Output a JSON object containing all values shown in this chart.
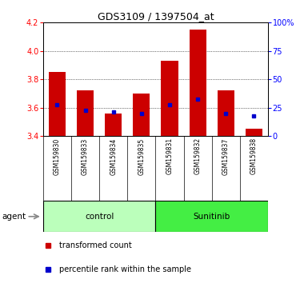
{
  "title": "GDS3109 / 1397504_at",
  "samples": [
    "GSM159830",
    "GSM159833",
    "GSM159834",
    "GSM159835",
    "GSM159831",
    "GSM159832",
    "GSM159837",
    "GSM159838"
  ],
  "groups": [
    "control",
    "control",
    "control",
    "control",
    "Sunitinib",
    "Sunitinib",
    "Sunitinib",
    "Sunitinib"
  ],
  "bar_bottom": 3.4,
  "bar_tops": [
    3.85,
    3.72,
    3.56,
    3.7,
    3.93,
    4.15,
    3.72,
    3.45
  ],
  "blue_dot_values": [
    3.62,
    3.58,
    3.57,
    3.56,
    3.62,
    3.66,
    3.56,
    3.54
  ],
  "ylim": [
    3.4,
    4.2
  ],
  "yticks_left": [
    3.4,
    3.6,
    3.8,
    4.0,
    4.2
  ],
  "yticks_right": [
    0,
    25,
    50,
    75,
    100
  ],
  "bar_color": "#cc0000",
  "dot_color": "#0000cc",
  "control_color": "#bbffbb",
  "sunitinib_color": "#44ee44",
  "agent_label": "agent",
  "legend_items": [
    "transformed count",
    "percentile rank within the sample"
  ],
  "bg_color": "#d8d8d8",
  "plot_bg": "white",
  "grid_dotted_vals": [
    3.6,
    3.8,
    4.0
  ]
}
